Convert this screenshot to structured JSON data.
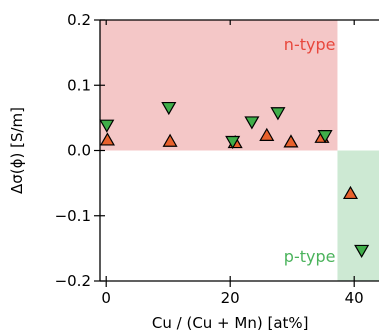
{
  "chart_data": {
    "type": "scatter",
    "xlabel": "Cu / (Cu + Mn) [at%]",
    "ylabel": "Δσ(ϕ) [S/m]",
    "xlim": [
      -1,
      44
    ],
    "ylim": [
      -0.2,
      0.2
    ],
    "x_ticks": [
      0,
      20,
      40
    ],
    "x_tick_labels": [
      "0",
      "20",
      "40"
    ],
    "y_ticks": [
      -0.2,
      -0.1,
      0.0,
      0.1,
      0.2
    ],
    "y_tick_labels": [
      "−0.2",
      "−0.1",
      "0.0",
      "0.1",
      "0.2"
    ],
    "grid": false,
    "regions": [
      {
        "label": "n-type",
        "x_range": [
          -1,
          37.3
        ],
        "y_range": [
          0.0,
          0.2
        ],
        "fill_color": "#f4c7c7",
        "label_color": "#e8473c"
      },
      {
        "label": "p-type",
        "x_range": [
          37.3,
          44
        ],
        "y_range": [
          -0.2,
          0.0
        ],
        "fill_color": "#cde9d3",
        "label_color": "#4bb35c"
      }
    ],
    "series": [
      {
        "marker": "triangle-up",
        "color": "#e8612c",
        "x": [
          0.2,
          10.3,
          20.8,
          25.9,
          29.8,
          34.8,
          39.4
        ],
        "y": [
          0.016,
          0.014,
          0.012,
          0.023,
          0.013,
          0.02,
          -0.066
        ]
      },
      {
        "marker": "triangle-down",
        "color": "#3fae49",
        "x": [
          0.1,
          10.1,
          20.4,
          23.5,
          27.7,
          35.3,
          41.2
        ],
        "y": [
          0.039,
          0.066,
          0.014,
          0.044,
          0.058,
          0.023,
          -0.153
        ]
      }
    ]
  }
}
